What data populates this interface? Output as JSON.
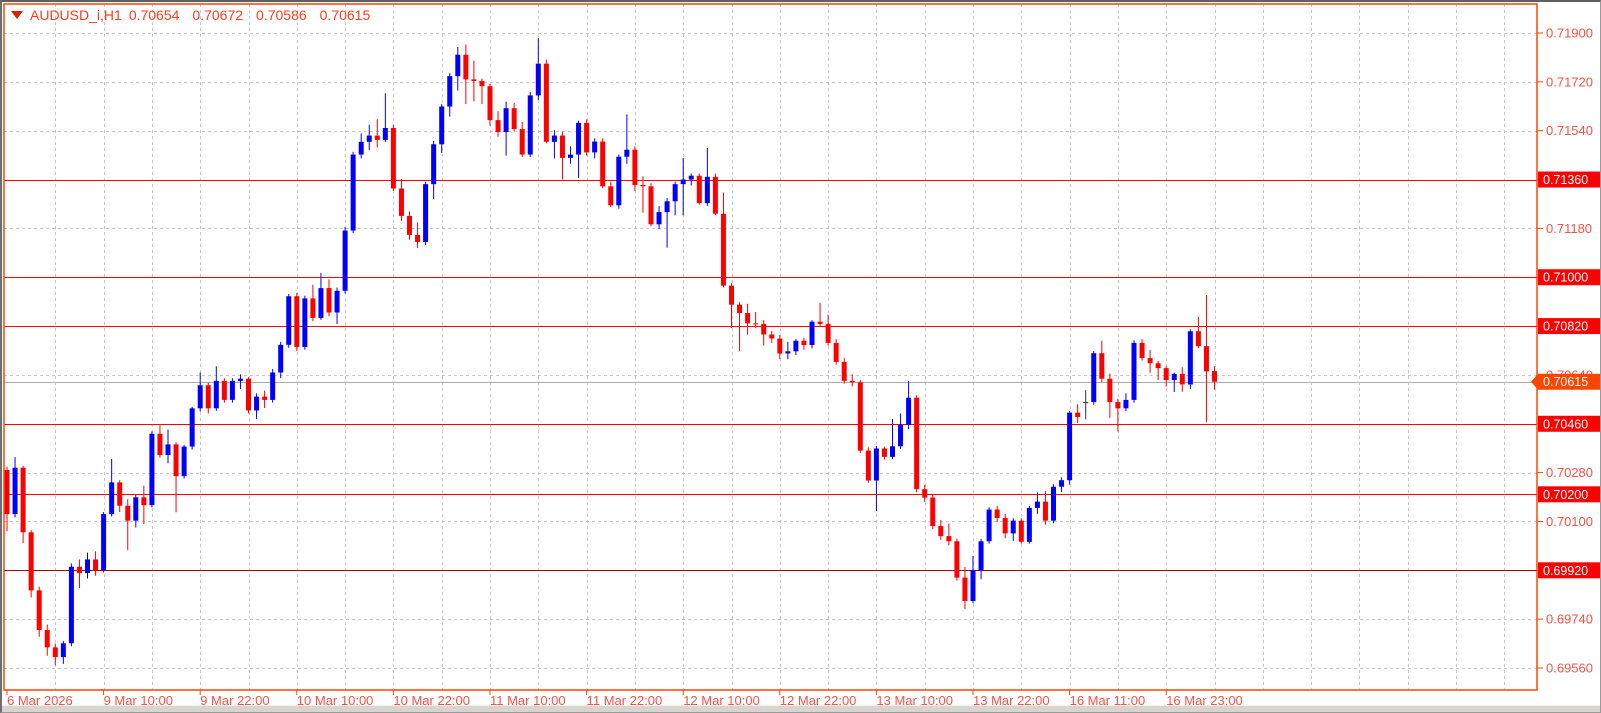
{
  "title": {
    "symbol_period": "AUDUSD_i,H1",
    "open": "0.70654",
    "high": "0.70672",
    "low": "0.70586",
    "close": "0.70615"
  },
  "colors": {
    "background": "#ffffff",
    "chart_border": "#ff4500",
    "grid": "#c9c9c9",
    "axis_text": "#ff5045",
    "title_text": "#ff3d1e",
    "bull_candle": "#0000ff",
    "bear_candle": "#ff0000",
    "doji_candle": "#333333",
    "level_line": "#ff0000",
    "level_line_dark": "#aa0000",
    "badge_bg": "#ff0000",
    "badge_text": "#ffffff",
    "current_line": "#ababab",
    "current_badge_bg": "#ff4500"
  },
  "chart_data": {
    "type": "candlestick",
    "title": "AUDUSD_i,H1",
    "symbol": "AUDUSD_i",
    "timeframe": "H1",
    "y_axis": {
      "min": 0.6956,
      "max": 0.719,
      "step": 0.0018,
      "labels": [
        "0.71900",
        "0.71720",
        "0.71540",
        "0.71360",
        "0.71180",
        "0.71000",
        "0.70820",
        "0.70640",
        "0.70460",
        "0.70280",
        "0.70100",
        "0.69920",
        "0.69740",
        "0.69560"
      ]
    },
    "x_axis": {
      "labels": [
        "6 Mar 2026",
        "9 Mar 10:00",
        "9 Mar 22:00",
        "10 Mar 10:00",
        "10 Mar 22:00",
        "11 Mar 10:00",
        "11 Mar 22:00",
        "12 Mar 10:00",
        "12 Mar 22:00",
        "13 Mar 10:00",
        "13 Mar 22:00",
        "16 Mar 11:00",
        "16 Mar 23:00"
      ],
      "label_every_n_bars": 12,
      "grid_every_n_bars": 6
    },
    "levels": [
      {
        "price": 0.7136,
        "label": "0.71360",
        "line_color": "#ff0000"
      },
      {
        "price": 0.71,
        "label": "0.71000",
        "line_color": "#ff0000"
      },
      {
        "price": 0.7082,
        "label": "0.70820",
        "line_color": "#ff0000"
      },
      {
        "price": 0.7046,
        "label": "0.70460",
        "line_color": "#ff0000"
      },
      {
        "price": 0.702,
        "label": "0.70200",
        "line_color": "#ff0000"
      },
      {
        "price": 0.6992,
        "label": "0.69920",
        "line_color": "#aa0000"
      }
    ],
    "current_price": {
      "price": 0.70615,
      "label": "0.70615"
    },
    "ohlc": [
      [
        0.7029,
        0.70302,
        0.70064,
        0.70127
      ],
      [
        0.70127,
        0.70337,
        0.70115,
        0.70298
      ],
      [
        0.70298,
        0.70305,
        0.7002,
        0.7006
      ],
      [
        0.7006,
        0.70068,
        0.6982,
        0.69846
      ],
      [
        0.69846,
        0.6986,
        0.69675,
        0.697
      ],
      [
        0.697,
        0.6972,
        0.69605,
        0.69636
      ],
      [
        0.69636,
        0.6965,
        0.6957,
        0.696
      ],
      [
        0.696,
        0.6966,
        0.69575,
        0.69651
      ],
      [
        0.69651,
        0.69945,
        0.6964,
        0.69933
      ],
      [
        0.69933,
        0.6996,
        0.69855,
        0.6991
      ],
      [
        0.6991,
        0.69985,
        0.6989,
        0.6996
      ],
      [
        0.6996,
        0.6999,
        0.699,
        0.6992
      ],
      [
        0.6992,
        0.70135,
        0.69912,
        0.70127
      ],
      [
        0.70127,
        0.7033,
        0.70118,
        0.70244
      ],
      [
        0.70244,
        0.70252,
        0.70135,
        0.70158
      ],
      [
        0.70158,
        0.70182,
        0.69994,
        0.70103
      ],
      [
        0.70103,
        0.70198,
        0.70078,
        0.70189
      ],
      [
        0.70189,
        0.70232,
        0.7009,
        0.7016
      ],
      [
        0.7016,
        0.70432,
        0.70152,
        0.70423
      ],
      [
        0.70423,
        0.70454,
        0.70335,
        0.70345
      ],
      [
        0.70345,
        0.70439,
        0.70314,
        0.70384
      ],
      [
        0.70384,
        0.70392,
        0.70134,
        0.70267
      ],
      [
        0.70267,
        0.70382,
        0.70258,
        0.70376
      ],
      [
        0.70376,
        0.70522,
        0.70365,
        0.70517
      ],
      [
        0.70517,
        0.70649,
        0.70505,
        0.70602
      ],
      [
        0.70602,
        0.70612,
        0.70498,
        0.70517
      ],
      [
        0.70517,
        0.70672,
        0.70508,
        0.70618
      ],
      [
        0.70618,
        0.70628,
        0.70538,
        0.70548
      ],
      [
        0.70548,
        0.70628,
        0.70538,
        0.70618
      ],
      [
        0.70618,
        0.70642,
        0.70588,
        0.70626
      ],
      [
        0.70626,
        0.70632,
        0.70498,
        0.70509
      ],
      [
        0.70509,
        0.70572,
        0.70478,
        0.7056
      ],
      [
        0.7056,
        0.70582,
        0.70518,
        0.70548
      ],
      [
        0.70548,
        0.70662,
        0.70538,
        0.70649
      ],
      [
        0.70649,
        0.70762,
        0.70628,
        0.70751
      ],
      [
        0.70751,
        0.70938,
        0.7074,
        0.7093
      ],
      [
        0.7093,
        0.70942,
        0.70728,
        0.70743
      ],
      [
        0.70743,
        0.70932,
        0.70733,
        0.70922
      ],
      [
        0.70922,
        0.70972,
        0.70838,
        0.7085
      ],
      [
        0.7085,
        0.71016,
        0.70843,
        0.7096
      ],
      [
        0.7096,
        0.70992,
        0.70856,
        0.7087
      ],
      [
        0.7087,
        0.70962,
        0.70828,
        0.7095
      ],
      [
        0.7095,
        0.71185,
        0.7094,
        0.71172
      ],
      [
        0.71172,
        0.71462,
        0.71163,
        0.71452
      ],
      [
        0.71452,
        0.7153,
        0.71438,
        0.71499
      ],
      [
        0.71499,
        0.71562,
        0.71468,
        0.71522
      ],
      [
        0.71522,
        0.71582,
        0.71478,
        0.71506
      ],
      [
        0.71506,
        0.71678,
        0.71498,
        0.7155
      ],
      [
        0.7155,
        0.71562,
        0.71318,
        0.71327
      ],
      [
        0.71327,
        0.71362,
        0.71208,
        0.71226
      ],
      [
        0.71226,
        0.71242,
        0.71138,
        0.71156
      ],
      [
        0.71156,
        0.71202,
        0.71108,
        0.7113
      ],
      [
        0.7113,
        0.71352,
        0.71118,
        0.71343
      ],
      [
        0.71343,
        0.71502,
        0.71288,
        0.7149
      ],
      [
        0.7149,
        0.71638,
        0.71458,
        0.71629
      ],
      [
        0.71629,
        0.71752,
        0.71592,
        0.71741
      ],
      [
        0.71741,
        0.71848,
        0.71688,
        0.7182
      ],
      [
        0.7182,
        0.71858,
        0.71638,
        0.71729
      ],
      [
        0.71729,
        0.71798,
        0.71648,
        0.71723
      ],
      [
        0.71723,
        0.71732,
        0.71638,
        0.71704
      ],
      [
        0.71704,
        0.71712,
        0.71558,
        0.71579
      ],
      [
        0.71579,
        0.71612,
        0.71518,
        0.71535
      ],
      [
        0.71535,
        0.71647,
        0.71448,
        0.71623
      ],
      [
        0.71623,
        0.71642,
        0.71538,
        0.71546
      ],
      [
        0.71546,
        0.71572,
        0.71443,
        0.71452
      ],
      [
        0.71452,
        0.71682,
        0.71443,
        0.7167
      ],
      [
        0.7167,
        0.71881,
        0.71653,
        0.71787
      ],
      [
        0.71787,
        0.71802,
        0.71493,
        0.71499
      ],
      [
        0.71499,
        0.71542,
        0.71438,
        0.71522
      ],
      [
        0.71522,
        0.71537,
        0.7136,
        0.7144
      ],
      [
        0.7144,
        0.71482,
        0.71418,
        0.71452
      ],
      [
        0.71452,
        0.71577,
        0.71366,
        0.71569
      ],
      [
        0.71569,
        0.71582,
        0.71448,
        0.7146
      ],
      [
        0.7146,
        0.71512,
        0.71438,
        0.715
      ],
      [
        0.715,
        0.71512,
        0.71328,
        0.71335
      ],
      [
        0.71335,
        0.71352,
        0.71258,
        0.71265
      ],
      [
        0.71265,
        0.71452,
        0.71253,
        0.71444
      ],
      [
        0.71444,
        0.716,
        0.71418,
        0.7147
      ],
      [
        0.7147,
        0.71482,
        0.71318,
        0.7134
      ],
      [
        0.7134,
        0.71372,
        0.71238,
        0.71335
      ],
      [
        0.71335,
        0.71347,
        0.71188,
        0.71195
      ],
      [
        0.71195,
        0.71262,
        0.71178,
        0.7124
      ],
      [
        0.7124,
        0.71292,
        0.71109,
        0.7128
      ],
      [
        0.7128,
        0.71352,
        0.71228,
        0.71343
      ],
      [
        0.71343,
        0.7144,
        0.71228,
        0.7136
      ],
      [
        0.7136,
        0.71382,
        0.71338,
        0.71374
      ],
      [
        0.71374,
        0.71382,
        0.71268,
        0.71273
      ],
      [
        0.71273,
        0.71476,
        0.71263,
        0.7137
      ],
      [
        0.7137,
        0.71382,
        0.71228,
        0.71234
      ],
      [
        0.71234,
        0.71312,
        0.70962,
        0.70969
      ],
      [
        0.70969,
        0.70978,
        0.70813,
        0.70899
      ],
      [
        0.70899,
        0.70908,
        0.70727,
        0.70868
      ],
      [
        0.70868,
        0.70902,
        0.70788,
        0.7083
      ],
      [
        0.7083,
        0.70872,
        0.70812,
        0.70828
      ],
      [
        0.70828,
        0.70842,
        0.70748,
        0.70789
      ],
      [
        0.70789,
        0.70802,
        0.70758,
        0.70774
      ],
      [
        0.70774,
        0.70787,
        0.70698,
        0.70719
      ],
      [
        0.70719,
        0.70762,
        0.70698,
        0.70727
      ],
      [
        0.70727,
        0.70772,
        0.70713,
        0.70766
      ],
      [
        0.70766,
        0.70777,
        0.70733,
        0.7075
      ],
      [
        0.7075,
        0.70842,
        0.70738,
        0.70836
      ],
      [
        0.70836,
        0.70906,
        0.70818,
        0.70828
      ],
      [
        0.70828,
        0.70862,
        0.70748,
        0.70758
      ],
      [
        0.70758,
        0.70772,
        0.70678,
        0.70688
      ],
      [
        0.70688,
        0.70702,
        0.70608,
        0.70618
      ],
      [
        0.70618,
        0.70642,
        0.70598,
        0.70613
      ],
      [
        0.70613,
        0.70622,
        0.70352,
        0.70361
      ],
      [
        0.70361,
        0.70373,
        0.70243,
        0.70251
      ],
      [
        0.70251,
        0.70379,
        0.70138,
        0.70369
      ],
      [
        0.70369,
        0.70376,
        0.70328,
        0.70338
      ],
      [
        0.70338,
        0.70478,
        0.7033,
        0.70377
      ],
      [
        0.70377,
        0.70498,
        0.70368,
        0.70456
      ],
      [
        0.70456,
        0.70618,
        0.7044,
        0.70556
      ],
      [
        0.70556,
        0.70565,
        0.70208,
        0.70219
      ],
      [
        0.70219,
        0.70235,
        0.70172,
        0.70188
      ],
      [
        0.70188,
        0.702,
        0.70072,
        0.70083
      ],
      [
        0.70083,
        0.70105,
        0.70032,
        0.70046
      ],
      [
        0.70046,
        0.70092,
        0.70012,
        0.70027
      ],
      [
        0.70027,
        0.70037,
        0.69882,
        0.69893
      ],
      [
        0.69893,
        0.69932,
        0.69777,
        0.69807
      ],
      [
        0.69807,
        0.69973,
        0.69798,
        0.6992
      ],
      [
        0.6992,
        0.70036,
        0.69887,
        0.70027
      ],
      [
        0.70027,
        0.70152,
        0.70018,
        0.70144
      ],
      [
        0.70144,
        0.70157,
        0.70098,
        0.70113
      ],
      [
        0.70113,
        0.70127,
        0.70038,
        0.70056
      ],
      [
        0.70056,
        0.70112,
        0.70028,
        0.70103
      ],
      [
        0.70103,
        0.70112,
        0.70018,
        0.70025
      ],
      [
        0.70025,
        0.70157,
        0.70018,
        0.7015
      ],
      [
        0.7015,
        0.70207,
        0.70128,
        0.70173
      ],
      [
        0.70173,
        0.70212,
        0.70088,
        0.70103
      ],
      [
        0.70103,
        0.70237,
        0.70093,
        0.70228
      ],
      [
        0.70228,
        0.70262,
        0.70208,
        0.70252
      ],
      [
        0.70252,
        0.70507,
        0.70236,
        0.70501
      ],
      [
        0.70501,
        0.70532,
        0.70463,
        0.70485
      ],
      [
        0.7054,
        0.70584,
        0.70476,
        0.7054
      ],
      [
        0.7054,
        0.70728,
        0.7053,
        0.7072
      ],
      [
        0.7072,
        0.70766,
        0.70613,
        0.70626
      ],
      [
        0.70626,
        0.70645,
        0.70482,
        0.7054
      ],
      [
        0.7054,
        0.70552,
        0.70431,
        0.70517
      ],
      [
        0.70517,
        0.70572,
        0.70507,
        0.70548
      ],
      [
        0.70548,
        0.70768,
        0.70538,
        0.70758
      ],
      [
        0.70758,
        0.70772,
        0.70693,
        0.70702
      ],
      [
        0.70702,
        0.70732,
        0.70648,
        0.70683
      ],
      [
        0.70683,
        0.70692,
        0.70621,
        0.70665
      ],
      [
        0.70665,
        0.70672,
        0.70597,
        0.70621
      ],
      [
        0.70621,
        0.70648,
        0.70577,
        0.70644
      ],
      [
        0.70644,
        0.70668,
        0.70578,
        0.70605
      ],
      [
        0.70605,
        0.70808,
        0.70588,
        0.70801
      ],
      [
        0.70801,
        0.70854,
        0.70738,
        0.70746
      ],
      [
        0.70746,
        0.70934,
        0.70466,
        0.70653
      ],
      [
        0.70654,
        0.70672,
        0.70586,
        0.70615
      ]
    ]
  }
}
